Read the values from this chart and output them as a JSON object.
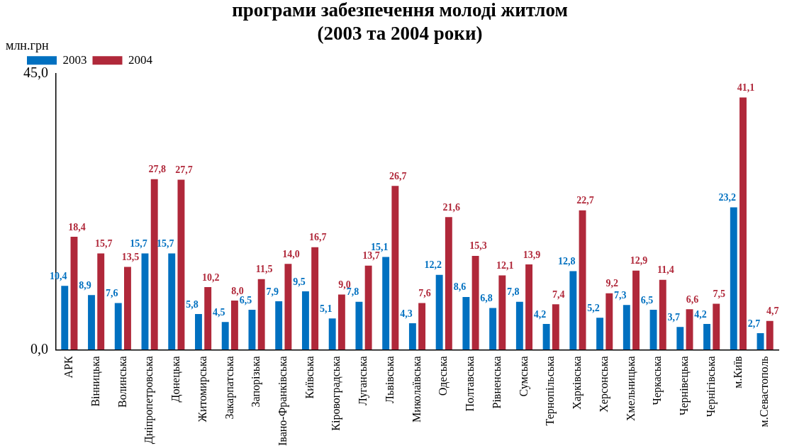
{
  "chart_data": {
    "type": "bar",
    "title": "програми забезпечення молоді житлом\n(2003 та 2004 роки)",
    "ylabel": "млн.грн",
    "categories": [
      "АРК",
      "Вінницька",
      "Волинська",
      "Дніпропетровська",
      "Донецька",
      "Житомирська",
      "Закарпатська",
      "Запорізька",
      "Івано-Франківська",
      "Київська",
      "Кіровоградська",
      "Луганська",
      "Львівська",
      "Миколаївська",
      "Одеська",
      "Полтавська",
      "Рівненська",
      "Сумська",
      "Тернопільська",
      "Харківська",
      "Херсонська",
      "Хмельницька",
      "Черкаська",
      "Чернівецька",
      "Чернігівська",
      "м.Київ",
      "м.Севастополь"
    ],
    "series": [
      {
        "name": "2003",
        "color": "#0070c0",
        "values": [
          10.4,
          8.9,
          7.6,
          15.7,
          15.7,
          5.8,
          4.5,
          6.5,
          7.9,
          9.5,
          5.1,
          7.8,
          15.1,
          4.3,
          12.2,
          8.6,
          6.8,
          7.8,
          4.2,
          12.8,
          5.2,
          7.3,
          6.5,
          3.7,
          4.2,
          23.2,
          2.7
        ],
        "value_labels": [
          "10,4",
          "8,9",
          "7,6",
          "15,7",
          "15,7",
          "5,8",
          "4,5",
          "6,5",
          "7,9",
          "9,5",
          "5,1",
          "7,8",
          "15,1",
          "4,3",
          "12,2",
          "8,6",
          "6,8",
          "7,8",
          "4,2",
          "12,8",
          "5,2",
          "7,3",
          "6,5",
          "3,7",
          "4,2",
          "23,2",
          "2,7"
        ]
      },
      {
        "name": "2004",
        "color": "#b0283a",
        "values": [
          18.4,
          15.7,
          13.5,
          27.8,
          27.7,
          10.2,
          8.0,
          11.5,
          14.0,
          16.7,
          9.0,
          13.7,
          26.7,
          7.6,
          21.6,
          15.3,
          12.1,
          13.9,
          7.4,
          22.7,
          9.2,
          12.9,
          11.4,
          6.6,
          7.5,
          41.1,
          4.7
        ],
        "value_labels": [
          "18,4",
          "15,7",
          "13,5",
          "27,8",
          "27,7",
          "10,2",
          "8,0",
          "11,5",
          "14,0",
          "16,7",
          "9,0",
          "13,7",
          "26,7",
          "7,6",
          "21,6",
          "15,3",
          "12,1",
          "13,9",
          "7,4",
          "22,7",
          "9,2",
          "12,9",
          "11,4",
          "6,6",
          "7,5",
          "41,1",
          "4,7"
        ]
      }
    ],
    "ylim": [
      0,
      45
    ],
    "yticks": [
      {
        "value": 0,
        "label": "0,0"
      },
      {
        "value": 45,
        "label": "45,0"
      }
    ],
    "grid": false,
    "legend": "top left"
  }
}
